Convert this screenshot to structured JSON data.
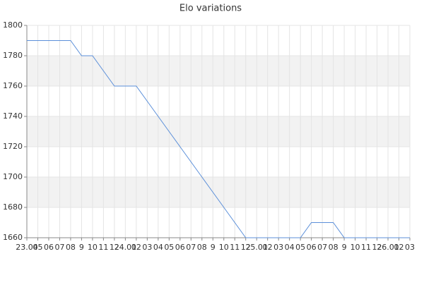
{
  "chart_data": {
    "type": "line",
    "title": "Elo variations",
    "categories": [
      "23.04",
      "05",
      "06",
      "07",
      "08",
      "9",
      "10",
      "11",
      "12",
      "24.01",
      "02",
      "03",
      "04",
      "05",
      "06",
      "07",
      "08",
      "9",
      "10",
      "11",
      "12",
      "25.01",
      "02",
      "03",
      "04",
      "05",
      "06",
      "07",
      "08",
      "9",
      "10",
      "11",
      "12",
      "26.01",
      "02",
      "03"
    ],
    "series": [
      {
        "name": "Elo",
        "color": "#5b8fd9",
        "values": [
          1790,
          1790,
          1790,
          1790,
          1790,
          1780,
          1780,
          1770,
          1760,
          1760,
          1760,
          1750,
          1740,
          1730,
          1720,
          1710,
          1700,
          1690,
          1680,
          1670,
          1660,
          1660,
          1660,
          1660,
          1660,
          1660,
          1670,
          1670,
          1670,
          1660,
          1660,
          1660,
          1660,
          1660,
          1660,
          1660
        ]
      }
    ],
    "ylim": [
      1660,
      1800
    ],
    "yticks": [
      1660,
      1680,
      1700,
      1720,
      1740,
      1760,
      1780,
      1800
    ],
    "grid": true
  }
}
